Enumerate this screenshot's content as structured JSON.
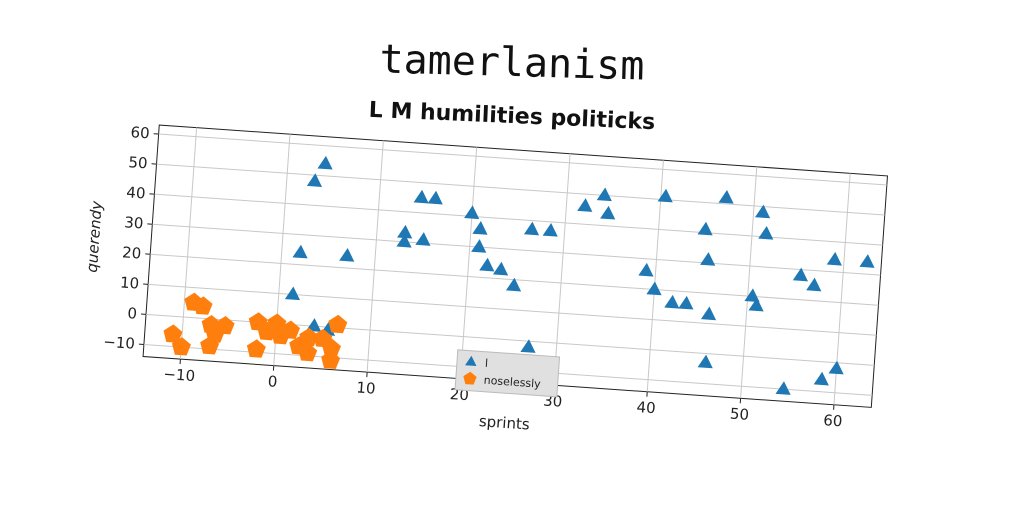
{
  "title": "tamerlanism",
  "chart_data": {
    "type": "scatter",
    "title": "L M humilities politicks",
    "xlabel": "sprints",
    "ylabel": "querendy",
    "xlim": [
      -14,
      64
    ],
    "ylim": [
      -14,
      63
    ],
    "xticks": [
      -10,
      0,
      10,
      20,
      30,
      40,
      50,
      60
    ],
    "yticks": [
      -10,
      0,
      10,
      20,
      30,
      40,
      50,
      60
    ],
    "grid": true,
    "legend_position": "lower-center",
    "series": [
      {
        "name": "l",
        "marker": "triangle",
        "color": "#1f77b4",
        "points": [
          [
            4,
            54
          ],
          [
            3,
            48
          ],
          [
            2,
            24
          ],
          [
            1.5,
            10
          ],
          [
            7,
            24
          ],
          [
            4,
            0
          ],
          [
            5.5,
            -1
          ],
          [
            13,
            33
          ],
          [
            13,
            30
          ],
          [
            15,
            31
          ],
          [
            14.5,
            45
          ],
          [
            16,
            45
          ],
          [
            20,
            41
          ],
          [
            21,
            36
          ],
          [
            21,
            30
          ],
          [
            22,
            24
          ],
          [
            23.5,
            23
          ],
          [
            25,
            18
          ],
          [
            26.5,
            37
          ],
          [
            28.5,
            37
          ],
          [
            27,
            -2
          ],
          [
            32,
            46
          ],
          [
            34,
            50
          ],
          [
            34.5,
            44
          ],
          [
            39,
            26
          ],
          [
            40,
            20
          ],
          [
            40.5,
            51
          ],
          [
            42,
            16
          ],
          [
            43.5,
            16
          ],
          [
            45,
            41
          ],
          [
            45.5,
            31
          ],
          [
            46,
            13
          ],
          [
            46,
            -3
          ],
          [
            47,
            52
          ],
          [
            50.5,
            20
          ],
          [
            51,
            17
          ],
          [
            51,
            48
          ],
          [
            51.5,
            41
          ],
          [
            54.5,
            -10
          ],
          [
            55.5,
            28
          ],
          [
            57,
            25
          ],
          [
            58.5,
            -6
          ],
          [
            59,
            34
          ],
          [
            60,
            -2
          ],
          [
            62.5,
            34
          ]
        ]
      },
      {
        "name": "noselessly",
        "marker": "pentagon",
        "color": "#ff7f0e",
        "points": [
          [
            -11,
            -6
          ],
          [
            -10,
            -10
          ],
          [
            -9,
            5
          ],
          [
            -8,
            4
          ],
          [
            -7,
            -2
          ],
          [
            -7,
            -9
          ],
          [
            -6.5,
            -5
          ],
          [
            -5.5,
            -2
          ],
          [
            -2,
            -9
          ],
          [
            -2,
            0
          ],
          [
            -1,
            -3
          ],
          [
            0,
            0
          ],
          [
            0.5,
            -4
          ],
          [
            1.5,
            -2
          ],
          [
            2.5,
            -7
          ],
          [
            3.5,
            -4
          ],
          [
            3.5,
            -9
          ],
          [
            5,
            -4
          ],
          [
            6,
            -7
          ],
          [
            6,
            -11
          ],
          [
            6.5,
            1
          ]
        ]
      }
    ]
  }
}
